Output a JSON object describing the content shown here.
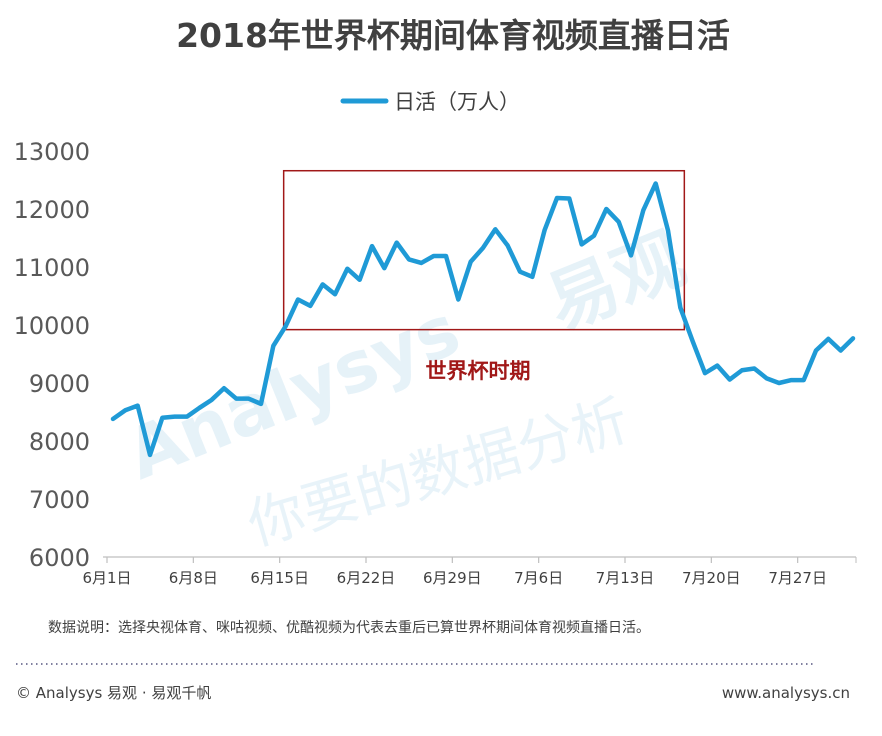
{
  "chart_data": {
    "type": "line",
    "title": "2018年世界杯期间体育视频直播日活",
    "legend": "日活（万人）",
    "legend_position": "top",
    "series_color": "#1f9ad6",
    "ylim": [
      6000,
      13000
    ],
    "yticks": [
      "13000",
      "12000",
      "11000",
      "10000",
      "9000",
      "8000",
      "7000",
      "6000"
    ],
    "xticks": [
      "6月1日",
      "6月8日",
      "6月15日",
      "6月22日",
      "6月29日",
      "7月6日",
      "7月13日",
      "7月20日",
      "7月27日"
    ],
    "x_first": "6月1日",
    "x_last": "7月31日",
    "values": [
      8380,
      8530,
      8610,
      7760,
      8400,
      8420,
      8420,
      8570,
      8710,
      8910,
      8730,
      8730,
      8640,
      9640,
      9980,
      10440,
      10330,
      10700,
      10530,
      10970,
      10780,
      11360,
      10980,
      11420,
      11130,
      11070,
      11190,
      11190,
      10440,
      11090,
      11330,
      11650,
      11370,
      10920,
      10830,
      11640,
      12190,
      12180,
      11390,
      11540,
      12000,
      11780,
      11200,
      11980,
      12440,
      11630,
      10300,
      9720,
      9170,
      9300,
      9060,
      9220,
      9250,
      9080,
      9000,
      9050,
      9050,
      9560,
      9760,
      9560,
      9770
    ],
    "highlight_label": "世界杯时期",
    "highlight_color": "#a11818",
    "highlight_range": [
      "6月15日",
      "7月17日"
    ],
    "highlight_y_range": [
      9920,
      12660
    ],
    "grid": false
  },
  "note": "数据说明：选择央视体育、咪咕视频、优酷视频为代表去重后已算世界杯期间体育视频直播日活。",
  "footer": {
    "left": "© Analysys 易观 · 易观千帆",
    "right": "www.analysys.cn"
  },
  "watermark": {
    "latin": "Analysys",
    "brand": "易观",
    "slogan": "你要的数据分析"
  }
}
